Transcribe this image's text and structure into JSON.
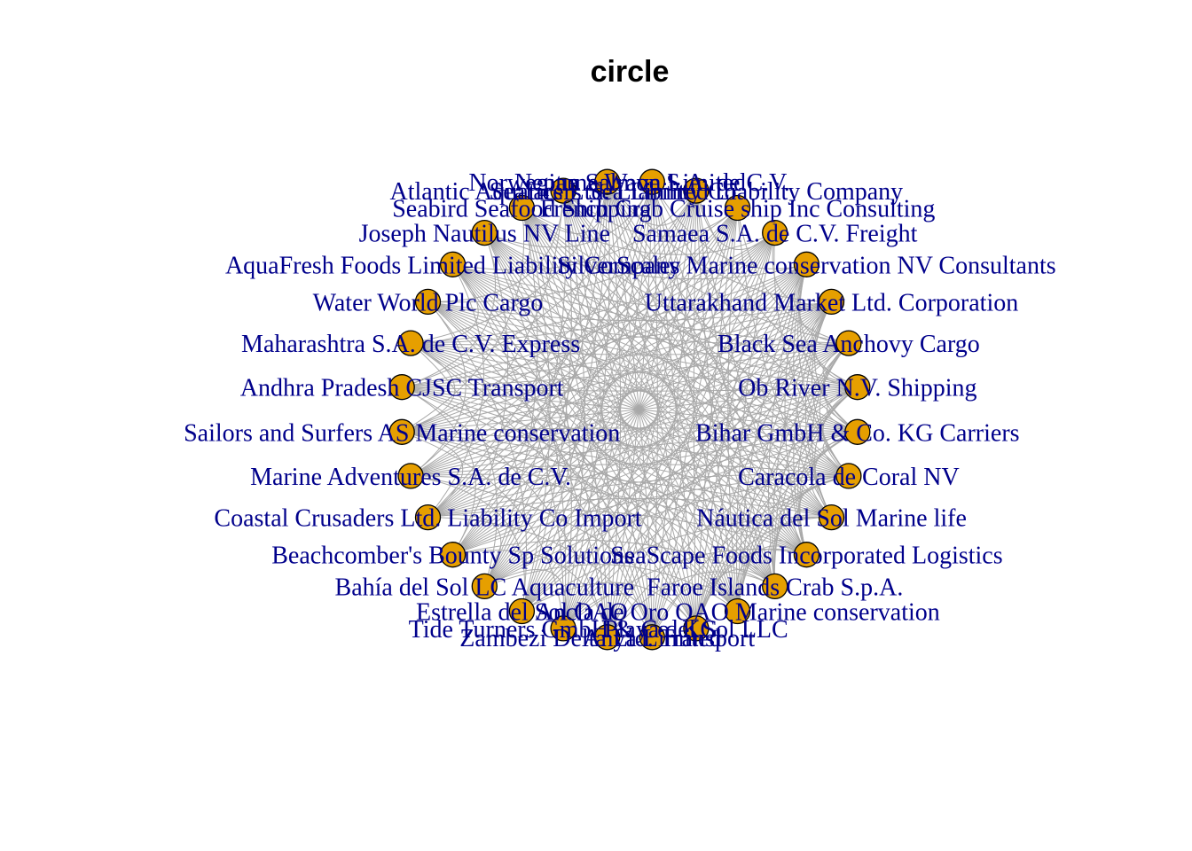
{
  "title": "circle",
  "colors": {
    "node_fill": "#E69F00",
    "edge": "#A9A9A9",
    "label": "#00008B"
  },
  "layout": "circle",
  "nodes": [
    "Zambezi Delta Ltd. Transport",
    "Tide Turners GmbH & Co. KG",
    "Estrella del Sol OAO",
    "Bahía del Sol LC Aquaculture",
    "Beachcomber's Bounty Sp Solutions",
    "Coastal Crusaders Ltd. Liability Co Import",
    "Marine Adventures S.A. de C.V.",
    "Sailors and Surfers AS Marine conservation",
    "Andhra Pradesh  CJSC Transport",
    "Maharashtra   S.A. de C.V. Express",
    "Water World Plc Cargo",
    "AquaFresh Foods Limited Liability Company",
    "Joseph Nautilus NV Line",
    "Seabird Seafood Shipping",
    "Atlantic Aquatics Ltd. Liability Co",
    "Norwegian Salmon Limited",
    "Neptune Wave S.A. de C.V.",
    "Seafarers Sea Limited Liability Company",
    "French Crab Cruise ship Inc Consulting",
    "Samaea S.A. de C.V. Freight",
    "SilverScales Marine conservation NV Consultants",
    "Uttarakhand  Market Ltd. Corporation",
    "Black Sea Anchovy Cargo",
    "Ob River N.V. Shipping",
    "Bihar  GmbH & Co. KG Carriers",
    "Caracola de Coral NV",
    "Náutica del Sol Marine life",
    "SeaScape Foods Incorporated Logistics",
    "Faroe Islands Crab S.p.A.",
    "Ancla de Oro OAO Marine conservation",
    "Playa del Sol LLC",
    "Anya Limited"
  ]
}
